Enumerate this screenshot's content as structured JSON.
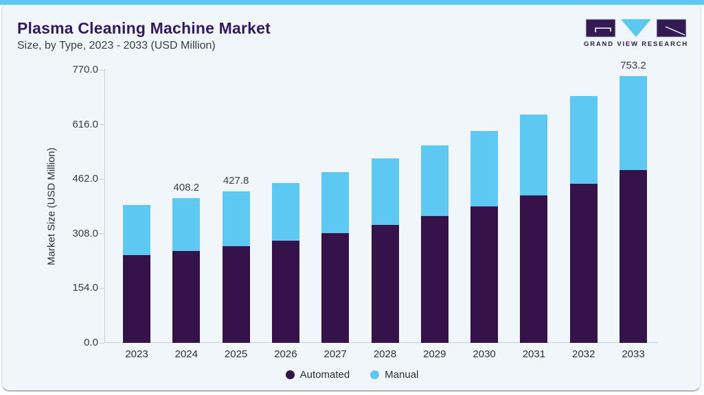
{
  "accent": {
    "top_bar_color": "#5ec8f0"
  },
  "header": {
    "title": "Plasma Cleaning Machine Market",
    "subtitle": "Size, by Type, 2023 - 2033 (USD Million)"
  },
  "logo": {
    "text": "GRAND VIEW RESEARCH",
    "purple": "#321a52",
    "blue": "#5bc8f0"
  },
  "chart_data": {
    "type": "bar",
    "stacked": true,
    "title": "Plasma Cleaning Machine Market Size, by Type, 2023 - 2033 (USD Million)",
    "categories": [
      "2023",
      "2024",
      "2025",
      "2026",
      "2027",
      "2028",
      "2029",
      "2030",
      "2031",
      "2032",
      "2033"
    ],
    "series": [
      {
        "name": "Automated",
        "color": "#36124b",
        "values": [
          247.0,
          260.0,
          272.0,
          289.0,
          310.0,
          333.0,
          357.0,
          385.0,
          415.0,
          448.0,
          487.0
        ]
      },
      {
        "name": "Manual",
        "color": "#5dc9f3",
        "values": [
          141.2,
          148.2,
          155.8,
          161.5,
          172.0,
          187.5,
          199.5,
          213.5,
          229.5,
          248.5,
          266.2
        ]
      }
    ],
    "totals": [
      388.2,
      408.2,
      427.8,
      450.5,
      482.0,
      520.5,
      556.5,
      598.5,
      644.5,
      696.5,
      753.2
    ],
    "bar_labels": [
      "",
      "408.2",
      "427.8",
      "",
      "",
      "",
      "",
      "",
      "",
      "",
      "753.2"
    ],
    "ylabel": "Market Size (USD Million)",
    "ytick_labels": [
      "0.0",
      "154.0",
      "308.0",
      "462.0",
      "616.0",
      "770.0"
    ],
    "ylim": [
      0,
      770
    ],
    "grid": false,
    "legend_position": "bottom"
  }
}
